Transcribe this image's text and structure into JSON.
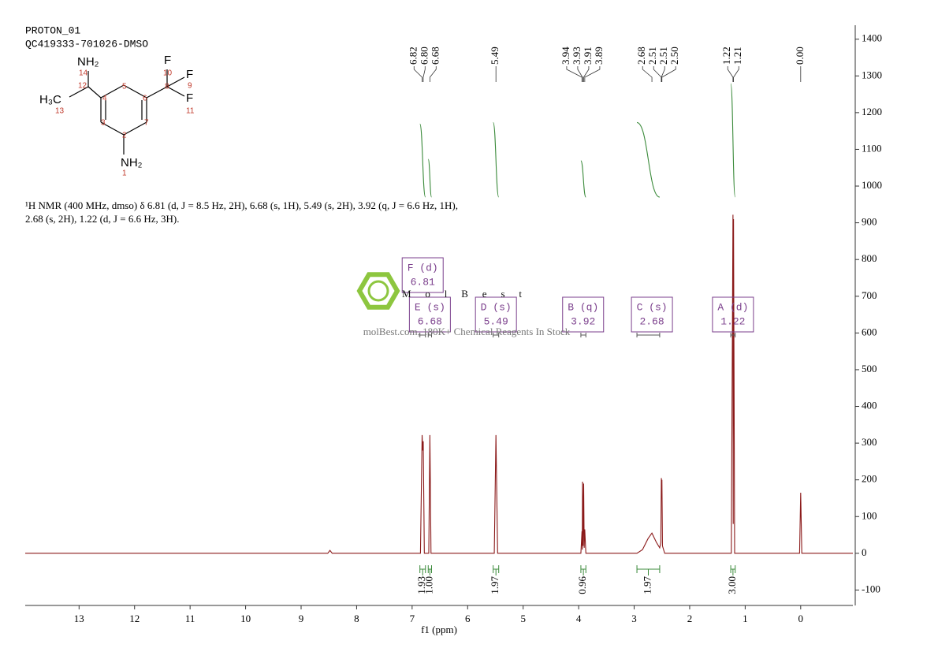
{
  "chart_data": {
    "type": "line",
    "title": "PROTON_01",
    "subtitle": "QC419333-701026-DMSO",
    "xlabel": "f1 (ppm)",
    "color": "#8b1a1a",
    "x": [
      13.97,
      8.52,
      8.48,
      8.44,
      6.85,
      6.82,
      6.81,
      6.8,
      6.78,
      6.7,
      6.68,
      6.66,
      5.52,
      5.49,
      5.46,
      3.96,
      3.94,
      3.935,
      3.93,
      3.92,
      3.91,
      3.9,
      3.89,
      3.87,
      2.95,
      2.85,
      2.75,
      2.68,
      2.6,
      2.54,
      2.52,
      2.51,
      2.505,
      2.5,
      2.49,
      2.45,
      1.25,
      1.22,
      1.215,
      1.21,
      1.19,
      0.02,
      0,
      -0.02,
      -0.94
    ],
    "values": [
      0,
      0,
      8,
      0,
      0,
      322,
      280,
      305,
      0,
      0,
      322,
      0,
      0,
      322,
      0,
      0,
      60,
      10,
      195,
      20,
      190,
      15,
      65,
      0,
      0,
      10,
      40,
      55,
      30,
      15,
      30,
      205,
      150,
      200,
      20,
      0,
      0,
      922,
      80,
      910,
      0,
      0,
      165,
      0,
      0
    ],
    "xlim": [
      13.97,
      -0.94
    ],
    "xticks": [
      13,
      12,
      11,
      10,
      9,
      8,
      7,
      6,
      5,
      4,
      3,
      2,
      1,
      0
    ],
    "ylim": [
      -142,
      1438
    ],
    "yticks": [
      -100,
      0,
      100,
      200,
      300,
      400,
      500,
      600,
      700,
      800,
      900,
      1000,
      1100,
      1200,
      1300,
      1400
    ],
    "peak_labels": [
      6.82,
      {
        "value": 6.8,
        "label": "6.80"
      },
      6.68,
      5.49,
      3.94,
      3.93,
      3.91,
      3.89,
      2.68,
      2.51,
      2.51,
      {
        "value": 2.5,
        "label": "2.50"
      },
      1.22,
      1.21,
      {
        "value": 0,
        "label": "0.00"
      }
    ],
    "integral_color": "#3a8a3a",
    "multiplet_color": "#7b3f8c",
    "multiplets": [
      {
        "name": "F (d)",
        "shift": 6.81,
        "range": [
          6.86,
          6.76
        ],
        "integral": 1.93
      },
      {
        "name": "E (s)",
        "shift": 6.68,
        "range": [
          6.71,
          6.65
        ],
        "integral": {
          "value": 1,
          "label": "1.00"
        }
      },
      {
        "name": "D (s)",
        "shift": 5.49,
        "range": [
          5.54,
          5.44
        ],
        "integral": 1.97
      },
      {
        "name": "B (q)",
        "shift": 3.92,
        "range": [
          3.96,
          3.87
        ],
        "integral": 0.96
      },
      {
        "name": "C (s)",
        "shift": 2.68,
        "range": [
          2.95,
          2.54
        ],
        "integral": 1.97
      },
      {
        "name": "A (d)",
        "shift": 1.22,
        "range": [
          1.26,
          1.18
        ],
        "integral": {
          "value": 3,
          "label": "3.00"
        }
      }
    ],
    "description": "¹H NMR (400 MHz, dmso) δ 6.81 (d, J = 8.5 Hz, 2H), 6.68 (s, 1H), 5.49 (s, 2H), 3.92 (q, J = 6.6 Hz, 1H), 2.68 (s, 2H), 1.22 (d, J = 6.6 Hz, 3H)."
  },
  "structure": {
    "labels": [
      "NH₂",
      "H₃C",
      "F",
      "F",
      "F",
      "NH₂"
    ],
    "numbers": [
      "14",
      "12",
      "13",
      "4",
      "5",
      "6",
      "3",
      "2",
      "7",
      "8",
      "10",
      "9",
      "11",
      "1"
    ]
  },
  "watermark": {
    "logo": "MolBest",
    "tagline": "molBest.com, 180K+ Chemical Reagents In Stock"
  }
}
